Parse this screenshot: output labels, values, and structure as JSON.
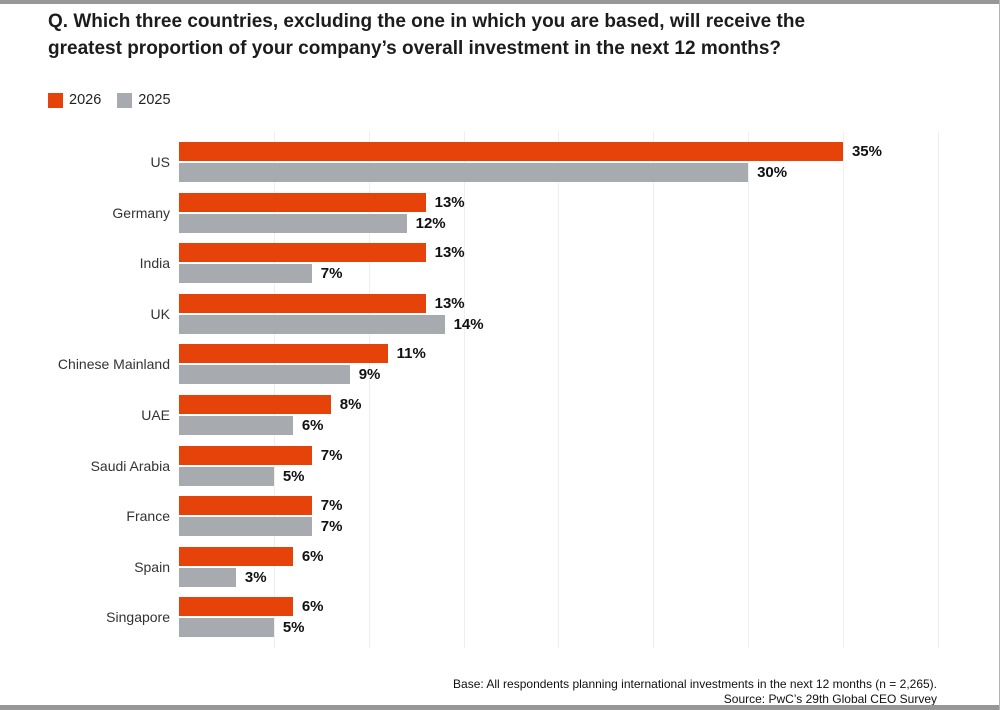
{
  "title": "Q. Which three countries, excluding the one in which you are based, will receive the greatest proportion of your company’s overall investment in the next 12 months?",
  "legend": [
    {
      "label": "2026",
      "color": "#E6430B"
    },
    {
      "label": "2025",
      "color": "#A7ABAF"
    }
  ],
  "footer": {
    "base": "Base: All respondents planning international investments in the next 12 months (n = 2,265).",
    "source": "Source: PwC’s 29th Global CEO Survey"
  },
  "chart_data": {
    "type": "bar",
    "orientation": "horizontal",
    "title": "",
    "xlabel": "",
    "ylabel": "",
    "categories": [
      "US",
      "Germany",
      "India",
      "UK",
      "Chinese Mainland",
      "UAE",
      "Saudi Arabia",
      "France",
      "Spain",
      "Singapore"
    ],
    "series": [
      {
        "name": "2026",
        "color": "#E6430B",
        "values": [
          35,
          13,
          13,
          13,
          11,
          8,
          7,
          7,
          6,
          6
        ]
      },
      {
        "name": "2025",
        "color": "#A7ABAF",
        "values": [
          30,
          12,
          7,
          14,
          9,
          6,
          5,
          7,
          3,
          5
        ]
      }
    ],
    "value_suffix": "%",
    "xlim": [
      0,
      40
    ],
    "gridline_step": 5,
    "grid": true,
    "legend_position": "top-left"
  }
}
